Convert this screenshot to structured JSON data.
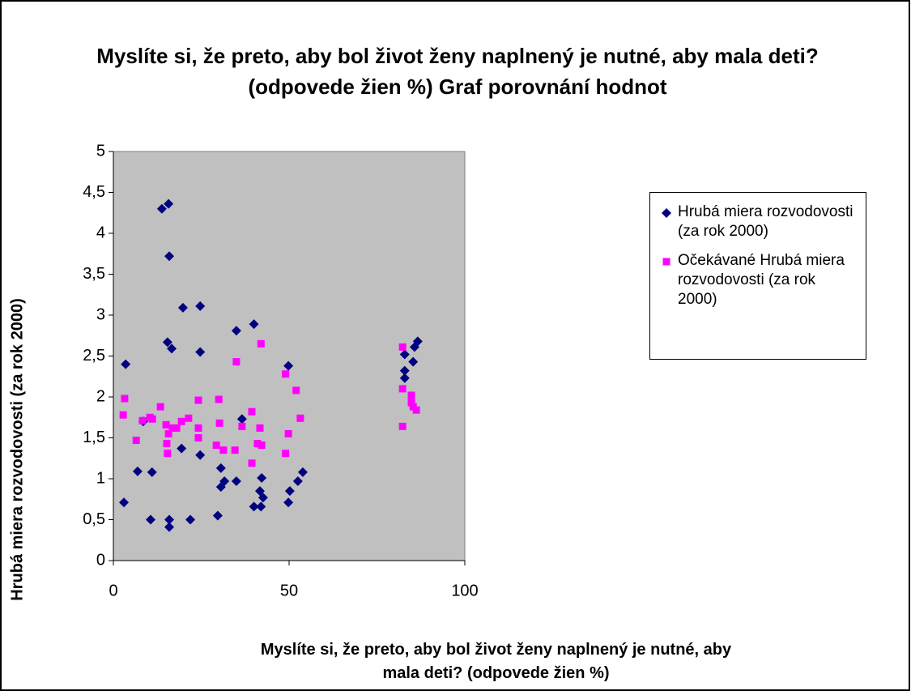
{
  "chart_data": {
    "type": "scatter",
    "title": "Myslíte si, že preto, aby bol život ženy naplnený je nutné, aby mala deti? (odpovede žien %) Graf porovnání hodnot",
    "xlabel": "Myslíte si, že preto, aby bol život ženy naplnený je nutné, aby mala deti? (odpovede žien %)",
    "ylabel": "Hrubá miera rozvodovosti (za rok 2000)",
    "xlim": [
      0,
      100
    ],
    "xticks": [
      0,
      50,
      100
    ],
    "ylim": [
      0,
      5
    ],
    "yticks": [
      0,
      {
        "value": 0.5,
        "label": "0,5"
      },
      1,
      {
        "value": 1.5,
        "label": "1,5"
      },
      2,
      {
        "value": 2.5,
        "label": "2,5"
      },
      3,
      {
        "value": 3.5,
        "label": "3,5"
      },
      4,
      {
        "value": 4.5,
        "label": "4,5"
      },
      5
    ],
    "grid": false,
    "legend": "right",
    "series": [
      {
        "name": "Hrubá miera rozvodovosti (za rok 2000)",
        "color": "#000080",
        "marker": "diamond",
        "x": [
          3.5,
          3,
          6.9,
          8.5,
          11,
          10.6,
          13.8,
          15.7,
          15.9,
          15.4,
          16.6,
          15.9,
          15.9,
          19.4,
          19.8,
          21.9,
          24.7,
          24.7,
          24.7,
          29.7,
          30.6,
          30.6,
          31.6,
          35,
          35,
          36.6,
          40,
          40,
          41.7,
          42.2,
          42,
          42.6,
          49.8,
          49.8,
          50.2,
          52.5,
          53.9,
          82.9,
          82.9,
          82.9,
          85.3,
          85.7,
          86.6
        ],
        "values": [
          2.4,
          0.71,
          1.09,
          1.7,
          1.08,
          0.5,
          4.3,
          4.36,
          3.72,
          2.67,
          2.59,
          0.5,
          0.41,
          1.37,
          3.09,
          0.5,
          3.11,
          2.55,
          1.29,
          0.55,
          1.13,
          0.9,
          0.97,
          2.81,
          0.97,
          1.73,
          2.89,
          0.66,
          0.85,
          1.01,
          0.66,
          0.77,
          2.38,
          0.71,
          0.85,
          0.97,
          1.08,
          2.52,
          2.32,
          2.23,
          2.43,
          2.61,
          2.68
        ]
      },
      {
        "name": "Očekávané Hrubá miera rozvodovosti (za rok 2000)",
        "color": "#ff00ff",
        "marker": "square",
        "x": [
          3.2,
          2.8,
          6.5,
          8.3,
          10.4,
          11.1,
          13.4,
          15,
          15.2,
          15.4,
          15.7,
          16.8,
          18,
          19.4,
          21.4,
          24.2,
          24.2,
          24.2,
          30,
          30.2,
          29.3,
          31.3,
          34.6,
          35,
          36.6,
          39.4,
          39.4,
          41,
          42,
          41.7,
          42.2,
          49,
          49.8,
          49,
          52,
          53.2,
          82.3,
          82.3,
          82.3,
          84.8,
          84.8,
          85.3,
          86.2
        ],
        "values": [
          1.98,
          1.78,
          1.47,
          1.71,
          1.75,
          1.73,
          1.88,
          1.66,
          1.43,
          1.31,
          1.55,
          1.62,
          1.62,
          1.7,
          1.74,
          1.96,
          1.62,
          1.5,
          1.97,
          1.68,
          1.41,
          1.35,
          1.35,
          2.43,
          1.64,
          1.82,
          1.19,
          1.43,
          2.65,
          1.62,
          1.41,
          2.28,
          1.55,
          1.31,
          2.08,
          1.74,
          2.61,
          2.1,
          1.64,
          2.02,
          1.93,
          1.88,
          1.84
        ]
      }
    ]
  }
}
